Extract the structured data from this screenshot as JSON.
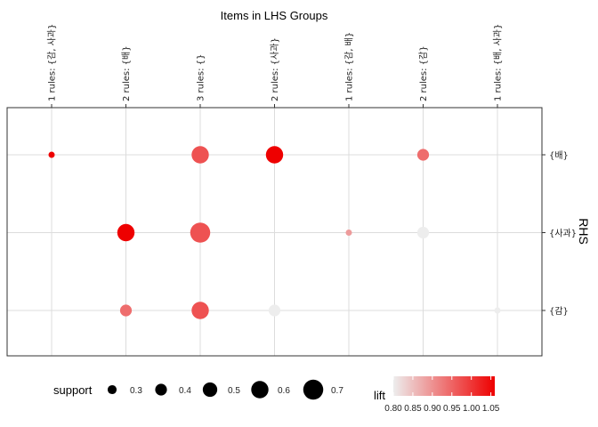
{
  "chart_data": {
    "type": "scatter",
    "title": "Items in LHS Groups",
    "ylabel": "RHS",
    "x_categories": [
      "1 rules: {감, 사과}",
      "2 rules: {배}",
      "3 rules: {}",
      "2 rules: {사과}",
      "1 rules: {감, 배}",
      "2 rules: {감}",
      "1 rules: {배, 사과}"
    ],
    "y_categories": [
      "{배}",
      "{사과}",
      "{감}"
    ],
    "points": [
      {
        "x": "1 rules: {감, 사과}",
        "y": "{배}",
        "support": 0.2,
        "lift": 1.06
      },
      {
        "x": "3 rules: {}",
        "y": "{배}",
        "support": 0.6,
        "lift": 0.97
      },
      {
        "x": "2 rules: {사과}",
        "y": "{배}",
        "support": 0.6,
        "lift": 1.06
      },
      {
        "x": "2 rules: {감}",
        "y": "{배}",
        "support": 0.4,
        "lift": 0.94
      },
      {
        "x": "2 rules: {배}",
        "y": "{사과}",
        "support": 0.6,
        "lift": 1.06
      },
      {
        "x": "3 rules: {}",
        "y": "{사과}",
        "support": 0.7,
        "lift": 0.97
      },
      {
        "x": "1 rules: {감, 배}",
        "y": "{사과}",
        "support": 0.2,
        "lift": 0.89
      },
      {
        "x": "2 rules: {감}",
        "y": "{사과}",
        "support": 0.4,
        "lift": 0.8
      },
      {
        "x": "2 rules: {배}",
        "y": "{감}",
        "support": 0.4,
        "lift": 0.94
      },
      {
        "x": "3 rules: {}",
        "y": "{감}",
        "support": 0.6,
        "lift": 0.97
      },
      {
        "x": "2 rules: {사과}",
        "y": "{감}",
        "support": 0.4,
        "lift": 0.8
      },
      {
        "x": "1 rules: {배, 사과}",
        "y": "{감}",
        "support": 0.2,
        "lift": 0.8
      }
    ],
    "support_legend": {
      "title": "support",
      "labels": [
        "0.3",
        "0.4",
        "0.5",
        "0.6",
        "0.7"
      ],
      "values": [
        0.3,
        0.4,
        0.5,
        0.6,
        0.7
      ]
    },
    "lift_legend": {
      "title": "lift",
      "labels": [
        "0.80",
        "0.85",
        "0.90",
        "0.95",
        "1.00",
        "1.05"
      ],
      "range": [
        0.8,
        1.06
      ]
    },
    "colors": {
      "low": "#ededed",
      "high": "#ee0000",
      "grid": "#dcdcdc",
      "frame": "#333333"
    },
    "grid": true,
    "legend_position": "bottom"
  }
}
